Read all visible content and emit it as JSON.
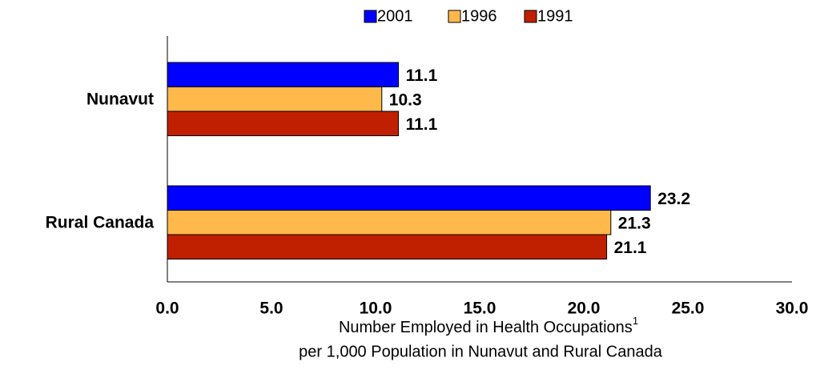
{
  "chart_data": {
    "type": "bar",
    "orientation": "horizontal",
    "categories": [
      "Nunavut",
      "Rural Canada"
    ],
    "series": [
      {
        "name": "2001",
        "color": "#0000ff",
        "values": [
          11.1,
          23.2
        ]
      },
      {
        "name": "1996",
        "color": "#ffb84a",
        "values": [
          10.3,
          21.3
        ]
      },
      {
        "name": "1991",
        "color": "#c02000",
        "values": [
          11.1,
          21.1
        ]
      }
    ],
    "xlim": [
      0,
      30
    ],
    "xticks": [
      {
        "value": 0,
        "label": "0.0"
      },
      {
        "value": 5,
        "label": "5.0"
      },
      {
        "value": 10,
        "label": "10.0"
      },
      {
        "value": 15,
        "label": "15.0"
      },
      {
        "value": 20,
        "label": "20.0"
      },
      {
        "value": 25,
        "label": "25.0"
      },
      {
        "value": 30,
        "label": "30.0"
      }
    ],
    "x_label": [
      "Number Employed in Health Occupations",
      "per 1,000 Population in Nunavut and Rural Canada"
    ],
    "x_label_footnote": "1",
    "legend": "top",
    "grid": false
  }
}
